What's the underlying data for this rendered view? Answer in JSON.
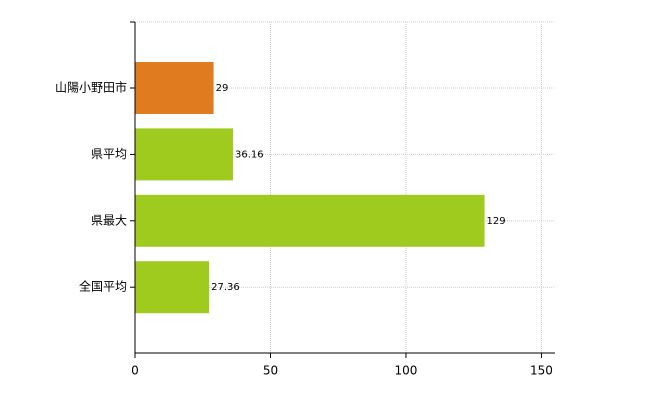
{
  "chart_data": {
    "type": "bar",
    "orientation": "horizontal",
    "categories": [
      "山陽小野田市",
      "県平均",
      "県最大",
      "全国平均"
    ],
    "values": [
      29,
      36.16,
      129,
      27.36
    ],
    "colors": [
      "#e07b20",
      "#9fcb1f",
      "#9fcb1f",
      "#9fcb1f"
    ],
    "xlim": [
      0,
      155
    ],
    "xticks": [
      0,
      50,
      100,
      150
    ],
    "grid": true
  }
}
